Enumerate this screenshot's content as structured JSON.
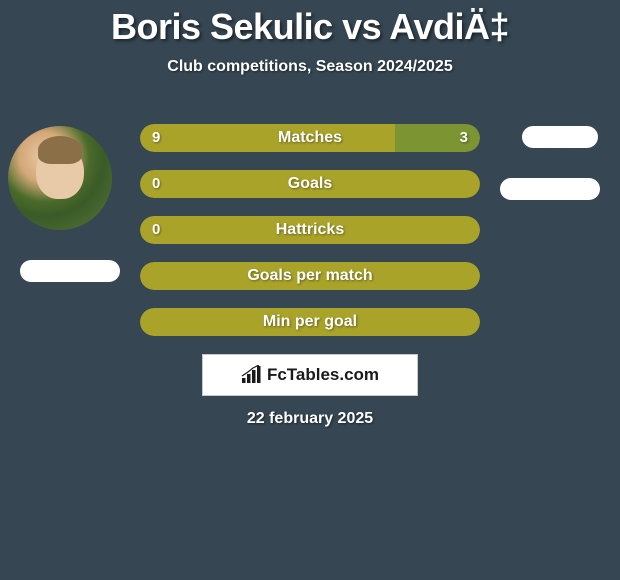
{
  "title": "Boris Sekulic vs AvdiÄ‡",
  "subtitle": "Club competitions, Season 2024/2025",
  "date": "22 february 2025",
  "attribution": "FcTables.com",
  "colors": {
    "background": "#364753",
    "bar_primary": "#a9a329",
    "bar_secondary": "#7d9432",
    "text": "#ffffff"
  },
  "bars": [
    {
      "label": "Matches",
      "left_value": "9",
      "right_value": "3",
      "left_pct": 75,
      "right_pct": 25,
      "left_color": "#a9a329",
      "right_color": "#7d9432",
      "show_values": true
    },
    {
      "label": "Goals",
      "left_value": "0",
      "right_value": "",
      "left_pct": 100,
      "right_pct": 0,
      "left_color": "#a9a329",
      "right_color": "#7d9432",
      "show_values": true
    },
    {
      "label": "Hattricks",
      "left_value": "0",
      "right_value": "",
      "left_pct": 100,
      "right_pct": 0,
      "left_color": "#a9a329",
      "right_color": "#7d9432",
      "show_values": true
    },
    {
      "label": "Goals per match",
      "left_value": "",
      "right_value": "",
      "left_pct": 100,
      "right_pct": 0,
      "left_color": "#a9a329",
      "right_color": "#7d9432",
      "show_values": false
    },
    {
      "label": "Min per goal",
      "left_value": "",
      "right_value": "",
      "left_pct": 100,
      "right_pct": 0,
      "left_color": "#a9a329",
      "right_color": "#7d9432",
      "show_values": false
    }
  ]
}
